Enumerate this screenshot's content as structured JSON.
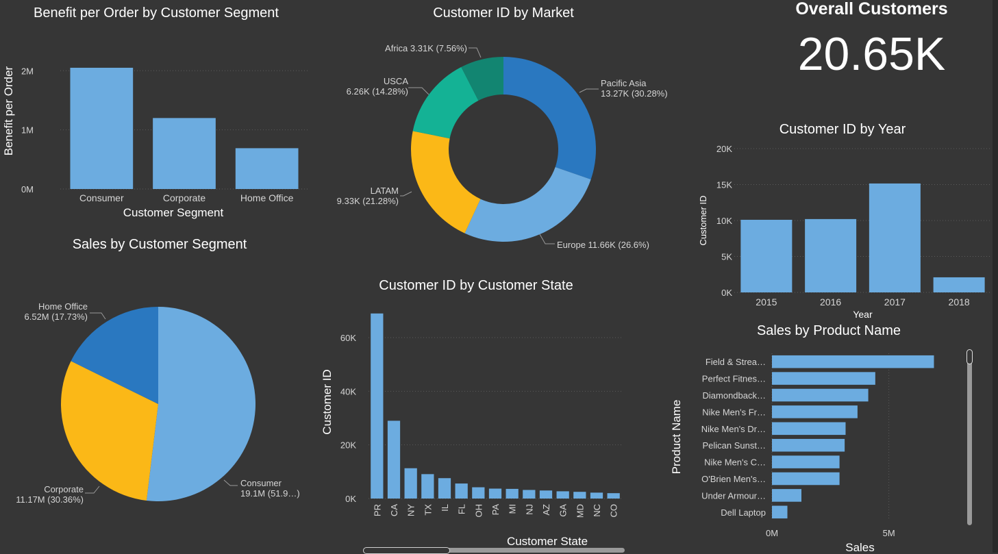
{
  "colors": {
    "background": "#363636",
    "bar": "#6cace0",
    "blue_dark": "#2a78c0",
    "blue_light": "#6cace0",
    "yellow": "#fbb817",
    "teal": "#14b295",
    "dark_teal": "#128571",
    "grid": "#5c5c5c",
    "axis_text": "#d6d6d6"
  },
  "kpi": {
    "label": "Overall Customers",
    "value": "20.65K"
  },
  "chart_data": [
    {
      "id": "benefit_by_segment",
      "type": "bar",
      "title": "Benefit per Order by Customer Segment",
      "xlabel": "Customer Segment",
      "ylabel": "Benefit per Order",
      "categories": [
        "Consumer",
        "Corporate",
        "Home Office"
      ],
      "values": [
        2050000,
        1200000,
        690000
      ],
      "ylim": [
        0,
        2200000
      ],
      "yticks": [
        {
          "v": 0,
          "label": "0M"
        },
        {
          "v": 1000000,
          "label": "1M"
        },
        {
          "v": 2000000,
          "label": "2M"
        }
      ],
      "grid": true
    },
    {
      "id": "customers_by_market",
      "type": "pie",
      "donut": true,
      "title": "Customer ID by Market",
      "slices": [
        {
          "name": "Pacific Asia",
          "value": 13270,
          "label": "Pacific Asia",
          "label2": "13.27K (30.28%)",
          "color": "#2a78c0"
        },
        {
          "name": "Europe",
          "value": 11660,
          "label": "Europe 11.66K (26.6%)",
          "label2": "",
          "color": "#6cace0"
        },
        {
          "name": "LATAM",
          "value": 9330,
          "label": "LATAM",
          "label2": "9.33K (21.28%)",
          "color": "#fbb817"
        },
        {
          "name": "USCA",
          "value": 6260,
          "label": "USCA",
          "label2": "6.26K (14.28%)",
          "color": "#14b295"
        },
        {
          "name": "Africa",
          "value": 3310,
          "label": "Africa 3.31K (7.56%)",
          "label2": "",
          "color": "#128571"
        }
      ]
    },
    {
      "id": "customers_by_year",
      "type": "bar",
      "title": "Customer ID by Year",
      "xlabel": "Year",
      "ylabel": "Customer ID",
      "categories": [
        "2015",
        "2016",
        "2017",
        "2018"
      ],
      "values": [
        10100,
        10200,
        15150,
        2100
      ],
      "ylim": [
        0,
        20000
      ],
      "yticks": [
        {
          "v": 0,
          "label": "0K"
        },
        {
          "v": 5000,
          "label": "5K"
        },
        {
          "v": 10000,
          "label": "10K"
        },
        {
          "v": 15000,
          "label": "15K"
        },
        {
          "v": 20000,
          "label": "20K"
        }
      ],
      "grid": true
    },
    {
      "id": "sales_by_segment",
      "type": "pie",
      "title": "Sales by Customer Segment",
      "slices": [
        {
          "name": "Consumer",
          "value": 19.1,
          "label": "Consumer",
          "label2": "19.1M (51.9…)",
          "color": "#6cace0"
        },
        {
          "name": "Corporate",
          "value": 11.17,
          "label": "Corporate",
          "label2": "11.17M (30.36%)",
          "color": "#fbb817"
        },
        {
          "name": "Home Office",
          "value": 6.52,
          "label": "Home Office",
          "label2": "6.52M (17.73%)",
          "color": "#2a78c0"
        }
      ]
    },
    {
      "id": "customers_by_state",
      "type": "bar",
      "title": "Customer ID by Customer State",
      "xlabel": "Customer State",
      "ylabel": "Customer ID",
      "categories": [
        "PR",
        "CA",
        "NY",
        "TX",
        "IL",
        "FL",
        "OH",
        "PA",
        "MI",
        "NJ",
        "AZ",
        "GA",
        "MD",
        "NC",
        "CO"
      ],
      "values": [
        69000,
        29000,
        11300,
        9100,
        7600,
        5600,
        4200,
        3700,
        3600,
        3200,
        3000,
        2700,
        2500,
        2200,
        2000
      ],
      "ylim": [
        0,
        72000
      ],
      "yticks": [
        {
          "v": 0,
          "label": "0K"
        },
        {
          "v": 20000,
          "label": "20K"
        },
        {
          "v": 40000,
          "label": "40K"
        },
        {
          "v": 60000,
          "label": "60K"
        }
      ],
      "grid": true
    },
    {
      "id": "sales_by_product",
      "type": "bar",
      "orientation": "horizontal",
      "title": "Sales by Product Name",
      "xlabel": "Sales",
      "ylabel": "Product Name",
      "categories": [
        "Field & Strea…",
        "Perfect Fitnes…",
        "Diamondback…",
        "Nike Men's Fr…",
        "Nike Men's Dr…",
        "Pelican Sunst…",
        "Nike Men's C…",
        "O'Brien Men's…",
        "Under Armour…",
        "Dell Laptop"
      ],
      "values": [
        6930000,
        4420000,
        4120000,
        3660000,
        3150000,
        3110000,
        2890000,
        2890000,
        1260000,
        660000
      ],
      "xlim": [
        0,
        8000000
      ],
      "xticks": [
        {
          "v": 0,
          "label": "0M"
        },
        {
          "v": 5000000,
          "label": "5M"
        }
      ],
      "grid": true
    }
  ]
}
